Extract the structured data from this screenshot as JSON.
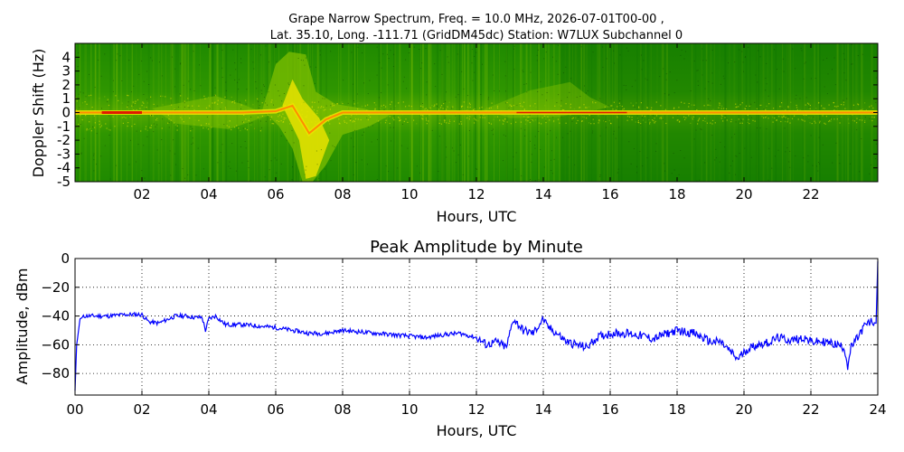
{
  "figure": {
    "title_line1": "Grape Narrow Spectrum, Freq. = 10.0 MHz, 2026-07-01T00-00 ,",
    "title_line2": "Lat.  35.10, Long. -111.71 (GridDM45dc) Station: W7LUX Subchannel 0"
  },
  "chart_data": [
    {
      "type": "heatmap",
      "title": "",
      "xlabel": "Hours, UTC",
      "ylabel": "Doppler Shift (Hz)",
      "xlim": [
        0,
        24
      ],
      "ylim": [
        -5,
        5
      ],
      "x_ticks": [
        "02",
        "04",
        "06",
        "08",
        "10",
        "12",
        "14",
        "16",
        "18",
        "20",
        "22"
      ],
      "x_tick_values": [
        2,
        4,
        6,
        8,
        10,
        12,
        14,
        16,
        18,
        20,
        22
      ],
      "y_ticks": [
        "4",
        "3",
        "2",
        "1",
        "0",
        "-1",
        "-2",
        "-3",
        "-4",
        "-5"
      ],
      "y_tick_values": [
        4,
        3,
        2,
        1,
        0,
        -1,
        -2,
        -3,
        -4,
        -5
      ],
      "colormap": [
        "#0a6e00",
        "#2f8d00",
        "#7fbf00",
        "#e9e300",
        "#ff8c00",
        "#e01a00"
      ],
      "carrier_doppler_hz": [
        [
          0,
          0
        ],
        [
          1,
          0
        ],
        [
          2,
          0
        ],
        [
          3,
          0
        ],
        [
          4,
          0
        ],
        [
          5,
          0
        ],
        [
          6,
          0.1
        ],
        [
          6.5,
          0.5
        ],
        [
          7,
          -1.5
        ],
        [
          7.5,
          -0.5
        ],
        [
          8,
          0
        ],
        [
          9,
          0
        ],
        [
          10,
          0
        ],
        [
          11,
          0
        ],
        [
          12,
          0
        ],
        [
          13,
          0
        ],
        [
          14,
          0
        ],
        [
          15,
          0
        ],
        [
          16,
          0
        ],
        [
          17,
          0
        ],
        [
          18,
          0
        ],
        [
          19,
          0
        ],
        [
          20,
          0
        ],
        [
          21,
          0
        ],
        [
          22,
          0
        ],
        [
          23,
          0
        ],
        [
          24,
          0
        ]
      ],
      "notes": [
        "broadband Doppler spread approx. 06-08 UTC down to -5 Hz"
      ]
    },
    {
      "type": "line",
      "title": "Peak Amplitude by Minute",
      "xlabel": "Hours, UTC",
      "ylabel": "Amplitude, dBm",
      "xlim": [
        0,
        24
      ],
      "ylim": [
        -95,
        0
      ],
      "grid": true,
      "color": "#0000ff",
      "x_ticks": [
        "00",
        "02",
        "04",
        "06",
        "08",
        "10",
        "12",
        "14",
        "16",
        "18",
        "20",
        "22",
        "24"
      ],
      "x_tick_values": [
        0,
        2,
        4,
        6,
        8,
        10,
        12,
        14,
        16,
        18,
        20,
        22,
        24
      ],
      "y_ticks": [
        "0",
        "−20",
        "−40",
        "−60",
        "−80"
      ],
      "y_tick_values": [
        0,
        -20,
        -40,
        -60,
        -80
      ],
      "x": [
        0,
        0.05,
        0.15,
        0.3,
        0.5,
        1.0,
        1.5,
        2.0,
        2.2,
        2.5,
        3.0,
        3.3,
        3.6,
        3.8,
        3.9,
        4.0,
        4.2,
        4.5,
        5.0,
        5.5,
        6.0,
        6.5,
        7.0,
        7.5,
        8.0,
        8.5,
        9.0,
        9.5,
        10.0,
        10.5,
        11.0,
        11.5,
        12.0,
        12.3,
        12.6,
        12.9,
        13.1,
        13.4,
        13.7,
        14.0,
        14.1,
        14.4,
        14.7,
        15.0,
        15.3,
        15.6,
        16.0,
        16.5,
        17.0,
        17.3,
        17.6,
        18.0,
        18.5,
        19.0,
        19.3,
        19.6,
        19.8,
        20.1,
        20.4,
        20.8,
        21.0,
        21.4,
        21.8,
        22.0,
        22.4,
        22.8,
        23.0,
        23.1,
        23.2,
        23.4,
        23.6,
        23.8,
        23.95,
        24.0
      ],
      "y": [
        -92,
        -60,
        -42,
        -40,
        -40,
        -40,
        -39,
        -39,
        -44,
        -45,
        -40,
        -40,
        -41,
        -41,
        -50,
        -42,
        -40,
        -46,
        -46,
        -47,
        -48,
        -50,
        -52,
        -52,
        -50,
        -51,
        -52,
        -53,
        -54,
        -55,
        -53,
        -52,
        -55,
        -60,
        -58,
        -62,
        -42,
        -50,
        -52,
        -42,
        -47,
        -52,
        -58,
        -60,
        -62,
        -55,
        -52,
        -52,
        -54,
        -56,
        -53,
        -50,
        -52,
        -58,
        -58,
        -65,
        -70,
        -63,
        -60,
        -58,
        -55,
        -57,
        -55,
        -58,
        -58,
        -60,
        -62,
        -75,
        -62,
        -55,
        -47,
        -44,
        -45,
        -2
      ]
    }
  ]
}
